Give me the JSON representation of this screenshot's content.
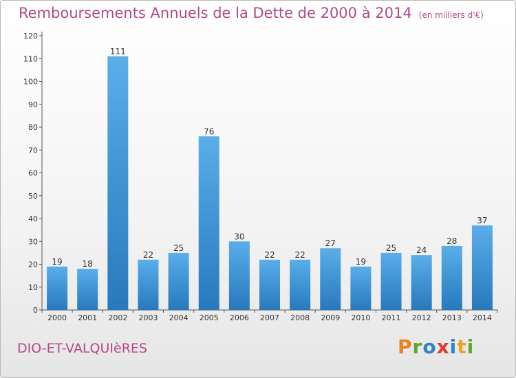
{
  "header": {
    "title": "Remboursements Annuels de la Dette de 2000 à 2014",
    "unit": "(en milliers d'€)"
  },
  "footer": {
    "town": "DIO-ET-VALQUIèRES",
    "logo": {
      "letters": [
        "P",
        "r",
        "o",
        "x",
        "i",
        "t",
        "i"
      ],
      "colors": [
        "#f07f1e",
        "#5aa831",
        "#2f84c5",
        "#e23a2e",
        "#2f84c5",
        "#f0a11e",
        "#5aa831"
      ]
    }
  },
  "colors": {
    "title": "#b24a86",
    "bar_top": "#5aaee9",
    "bar_bottom": "#2779bd"
  },
  "chart_data": {
    "type": "bar",
    "categories": [
      "2000",
      "2001",
      "2002",
      "2003",
      "2004",
      "2005",
      "2006",
      "2007",
      "2008",
      "2009",
      "2010",
      "2011",
      "2012",
      "2013",
      "2014"
    ],
    "values": [
      19,
      18,
      111,
      22,
      25,
      76,
      30,
      22,
      22,
      27,
      19,
      25,
      24,
      28,
      37
    ],
    "title": "Remboursements Annuels de la Dette de 2000 à 2014",
    "subtitle": "(en milliers d'€)",
    "ylim": [
      0,
      120
    ],
    "yticks": [
      0,
      10,
      20,
      30,
      40,
      50,
      60,
      70,
      80,
      90,
      100,
      110,
      120
    ],
    "grid": false,
    "legend": "none"
  }
}
